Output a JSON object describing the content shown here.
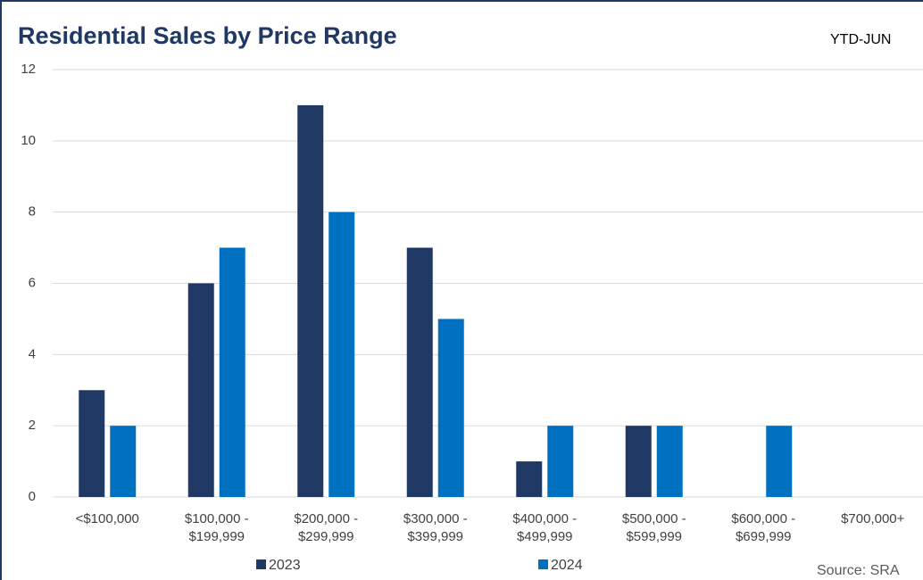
{
  "chart_data": {
    "type": "bar",
    "title": "Residential Sales by Price Range",
    "subtitle": "YTD-JUN",
    "source": "Source: SRA",
    "categories": [
      "<$100,000",
      "$100,000 -\n$199,999",
      "$200,000 -\n$299,999",
      "$300,000 -\n$399,999",
      "$400,000 -\n$499,999",
      "$500,000 -\n$599,999",
      "$600,000 -\n$699,999",
      "$700,000+"
    ],
    "series": [
      {
        "name": "2023",
        "color": "#203864",
        "values": [
          3,
          6,
          11,
          7,
          1,
          2,
          0,
          0
        ]
      },
      {
        "name": "2024",
        "color": "#0070c0",
        "values": [
          2,
          7,
          8,
          5,
          2,
          2,
          2,
          0
        ]
      }
    ],
    "ylim": [
      0,
      12
    ],
    "yticks": [
      0,
      2,
      4,
      6,
      8,
      10,
      12
    ],
    "grid": true
  }
}
